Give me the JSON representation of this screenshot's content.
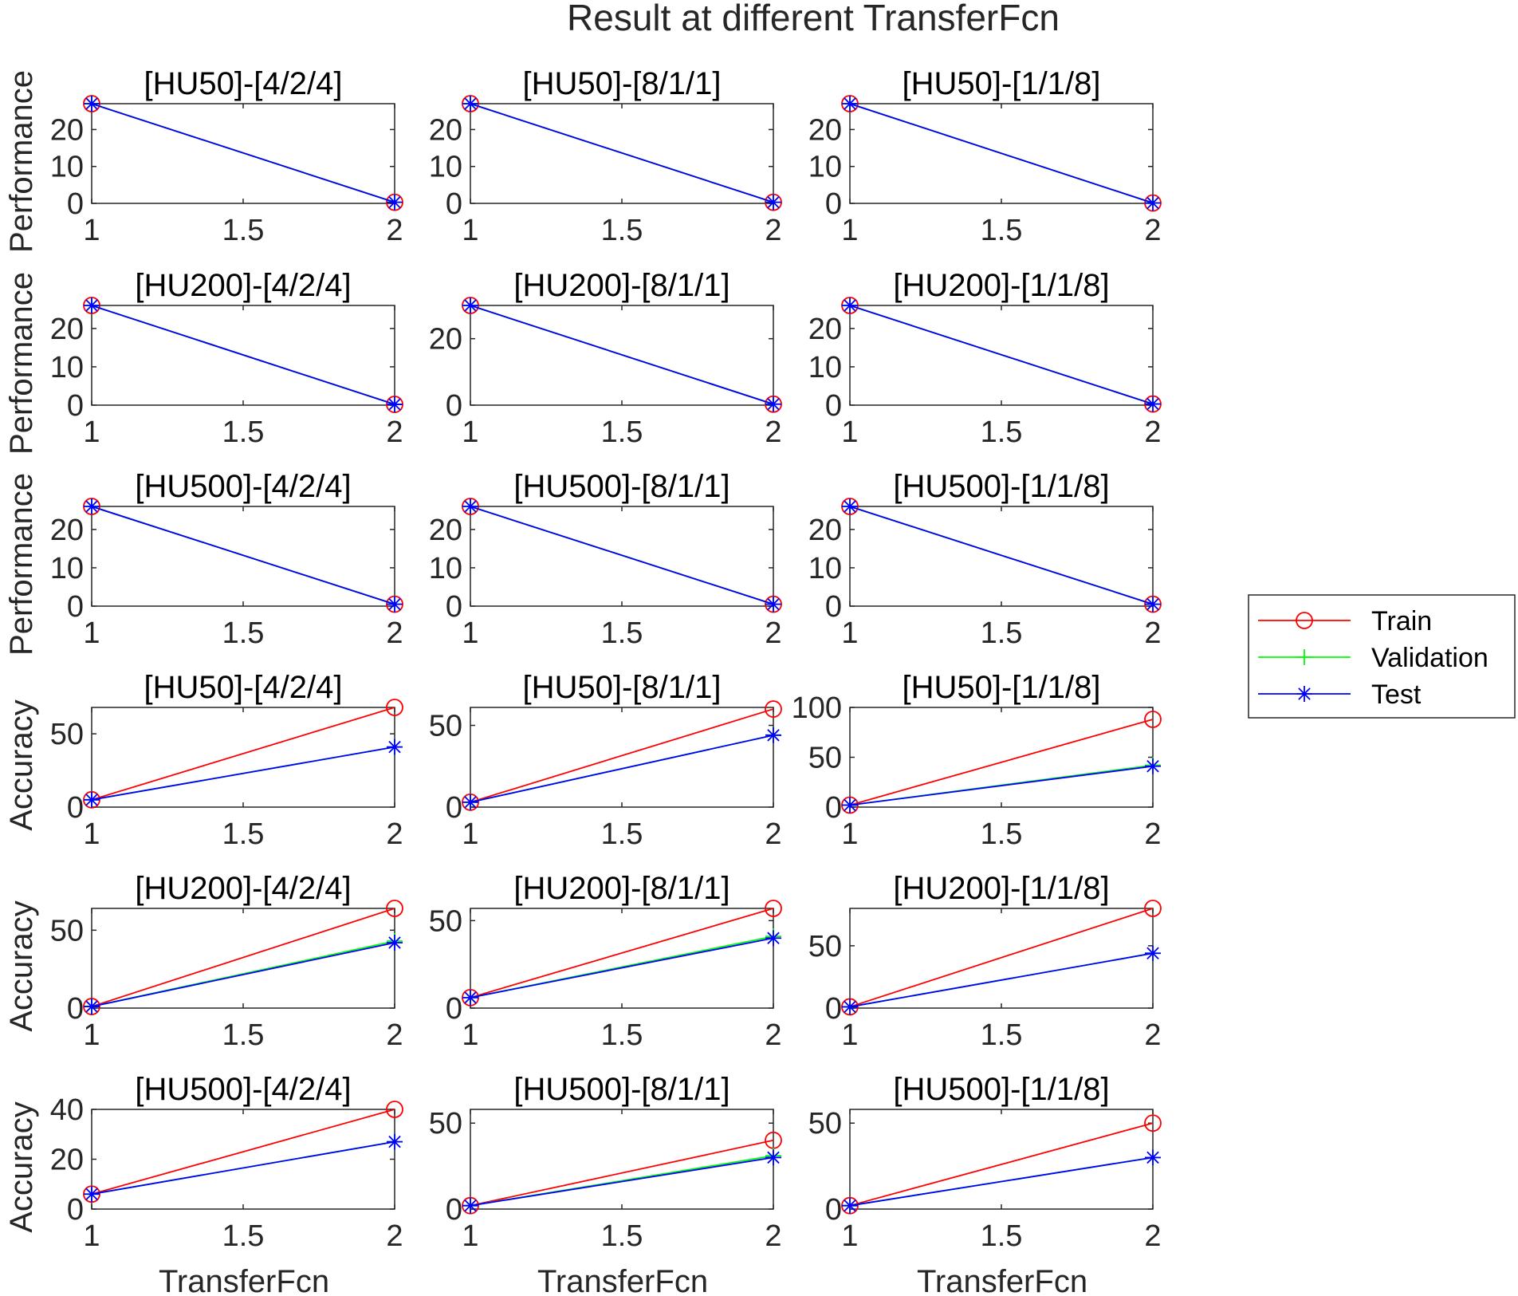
{
  "figure": {
    "title": "Result at different TransferFcn",
    "xlabel": "TransferFcn",
    "ylabel_performance": "Performance",
    "ylabel_accuracy": "Accuracy"
  },
  "legend": {
    "placement": "right-middle",
    "entries": [
      {
        "name": "Train",
        "color": "#ff0000",
        "marker": "circle"
      },
      {
        "name": "Validation",
        "color": "#00ff00",
        "marker": "plus"
      },
      {
        "name": "Test",
        "color": "#0000ff",
        "marker": "asterisk"
      }
    ]
  },
  "chart_data": [
    {
      "type": "line",
      "title": "[HU50]-[4/2/4]",
      "ylabel": "Performance",
      "x": [
        1,
        2
      ],
      "xlim": [
        1,
        2
      ],
      "xticks": [
        1,
        1.5,
        2
      ],
      "ylim": [
        0,
        27
      ],
      "yticks": [
        0,
        10,
        20
      ],
      "series": [
        {
          "name": "Train",
          "values": [
            27,
            0.3
          ]
        },
        {
          "name": "Validation",
          "values": [
            27,
            0.3
          ]
        },
        {
          "name": "Test",
          "values": [
            27,
            0.3
          ]
        }
      ]
    },
    {
      "type": "line",
      "title": "[HU50]-[8/1/1]",
      "ylabel": "",
      "x": [
        1,
        2
      ],
      "xlim": [
        1,
        2
      ],
      "xticks": [
        1,
        1.5,
        2
      ],
      "ylim": [
        0,
        27
      ],
      "yticks": [
        0,
        10,
        20
      ],
      "series": [
        {
          "name": "Train",
          "values": [
            27,
            0.3
          ]
        },
        {
          "name": "Validation",
          "values": [
            27,
            0.3
          ]
        },
        {
          "name": "Test",
          "values": [
            27,
            0.3
          ]
        }
      ]
    },
    {
      "type": "line",
      "title": "[HU50]-[1/1/8]",
      "ylabel": "",
      "x": [
        1,
        2
      ],
      "xlim": [
        1,
        2
      ],
      "xticks": [
        1,
        1.5,
        2
      ],
      "ylim": [
        0,
        27
      ],
      "yticks": [
        0,
        10,
        20
      ],
      "series": [
        {
          "name": "Train",
          "values": [
            27,
            0.1
          ]
        },
        {
          "name": "Validation",
          "values": [
            27,
            0.1
          ]
        },
        {
          "name": "Test",
          "values": [
            27,
            0.1
          ]
        }
      ]
    },
    {
      "type": "line",
      "title": "[HU200]-[4/2/4]",
      "ylabel": "Performance",
      "x": [
        1,
        2
      ],
      "xlim": [
        1,
        2
      ],
      "xticks": [
        1,
        1.5,
        2
      ],
      "ylim": [
        0,
        26
      ],
      "yticks": [
        0,
        10,
        20
      ],
      "series": [
        {
          "name": "Train",
          "values": [
            26,
            0.2
          ]
        },
        {
          "name": "Validation",
          "values": [
            26,
            0.2
          ]
        },
        {
          "name": "Test",
          "values": [
            26,
            0.2
          ]
        }
      ]
    },
    {
      "type": "line",
      "title": "[HU200]-[8/1/1]",
      "ylabel": "",
      "x": [
        1,
        2
      ],
      "xlim": [
        1,
        2
      ],
      "xticks": [
        1,
        1.5,
        2
      ],
      "ylim": [
        0,
        30
      ],
      "yticks": [
        0,
        20
      ],
      "series": [
        {
          "name": "Train",
          "values": [
            30,
            0.3
          ]
        },
        {
          "name": "Validation",
          "values": [
            30,
            0.3
          ]
        },
        {
          "name": "Test",
          "values": [
            30,
            0.3
          ]
        }
      ]
    },
    {
      "type": "line",
      "title": "[HU200]-[1/1/8]",
      "ylabel": "",
      "x": [
        1,
        2
      ],
      "xlim": [
        1,
        2
      ],
      "xticks": [
        1,
        1.5,
        2
      ],
      "ylim": [
        0,
        26
      ],
      "yticks": [
        0,
        10,
        20
      ],
      "series": [
        {
          "name": "Train",
          "values": [
            26,
            0.3
          ]
        },
        {
          "name": "Validation",
          "values": [
            26,
            0.3
          ]
        },
        {
          "name": "Test",
          "values": [
            26,
            0.3
          ]
        }
      ]
    },
    {
      "type": "line",
      "title": "[HU500]-[4/2/4]",
      "ylabel": "Performance",
      "x": [
        1,
        2
      ],
      "xlim": [
        1,
        2
      ],
      "xticks": [
        1,
        1.5,
        2
      ],
      "ylim": [
        0,
        26
      ],
      "yticks": [
        0,
        10,
        20
      ],
      "series": [
        {
          "name": "Train",
          "values": [
            26,
            0.5
          ]
        },
        {
          "name": "Validation",
          "values": [
            26,
            0.5
          ]
        },
        {
          "name": "Test",
          "values": [
            26,
            0.5
          ]
        }
      ]
    },
    {
      "type": "line",
      "title": "[HU500]-[8/1/1]",
      "ylabel": "",
      "x": [
        1,
        2
      ],
      "xlim": [
        1,
        2
      ],
      "xticks": [
        1,
        1.5,
        2
      ],
      "ylim": [
        0,
        26
      ],
      "yticks": [
        0,
        10,
        20
      ],
      "series": [
        {
          "name": "Train",
          "values": [
            26,
            0.5
          ]
        },
        {
          "name": "Validation",
          "values": [
            26,
            0.5
          ]
        },
        {
          "name": "Test",
          "values": [
            26,
            0.5
          ]
        }
      ]
    },
    {
      "type": "line",
      "title": "[HU500]-[1/1/8]",
      "ylabel": "",
      "x": [
        1,
        2
      ],
      "xlim": [
        1,
        2
      ],
      "xticks": [
        1,
        1.5,
        2
      ],
      "ylim": [
        0,
        26
      ],
      "yticks": [
        0,
        10,
        20
      ],
      "series": [
        {
          "name": "Train",
          "values": [
            26,
            0.5
          ]
        },
        {
          "name": "Validation",
          "values": [
            26,
            0.5
          ]
        },
        {
          "name": "Test",
          "values": [
            26,
            0.5
          ]
        }
      ]
    },
    {
      "type": "line",
      "title": "[HU50]-[4/2/4]",
      "ylabel": "Accuracy",
      "x": [
        1,
        2
      ],
      "xlim": [
        1,
        2
      ],
      "xticks": [
        1,
        1.5,
        2
      ],
      "ylim": [
        0,
        68
      ],
      "yticks": [
        0,
        50
      ],
      "series": [
        {
          "name": "Train",
          "values": [
            5,
            68
          ]
        },
        {
          "name": "Validation",
          "values": [
            5,
            41
          ]
        },
        {
          "name": "Test",
          "values": [
            5,
            41
          ]
        }
      ]
    },
    {
      "type": "line",
      "title": "[HU50]-[8/1/1]",
      "ylabel": "",
      "x": [
        1,
        2
      ],
      "xlim": [
        1,
        2
      ],
      "xticks": [
        1,
        1.5,
        2
      ],
      "ylim": [
        0,
        61
      ],
      "yticks": [
        0,
        50
      ],
      "series": [
        {
          "name": "Train",
          "values": [
            3,
            60
          ]
        },
        {
          "name": "Validation",
          "values": [
            3,
            44
          ]
        },
        {
          "name": "Test",
          "values": [
            3,
            44
          ]
        }
      ]
    },
    {
      "type": "line",
      "title": "[HU50]-[1/1/8]",
      "ylabel": "",
      "x": [
        1,
        2
      ],
      "xlim": [
        1,
        2
      ],
      "xticks": [
        1,
        1.5,
        2
      ],
      "ylim": [
        0,
        100
      ],
      "yticks": [
        0,
        50,
        100
      ],
      "series": [
        {
          "name": "Train",
          "values": [
            2,
            88
          ]
        },
        {
          "name": "Validation",
          "values": [
            2,
            42
          ]
        },
        {
          "name": "Test",
          "values": [
            2,
            41
          ]
        }
      ]
    },
    {
      "type": "line",
      "title": "[HU200]-[4/2/4]",
      "ylabel": "Accuracy",
      "x": [
        1,
        2
      ],
      "xlim": [
        1,
        2
      ],
      "xticks": [
        1,
        1.5,
        2
      ],
      "ylim": [
        0,
        64
      ],
      "yticks": [
        0,
        50
      ],
      "series": [
        {
          "name": "Train",
          "values": [
            1,
            64
          ]
        },
        {
          "name": "Validation",
          "values": [
            1,
            43
          ]
        },
        {
          "name": "Test",
          "values": [
            1,
            42
          ]
        }
      ]
    },
    {
      "type": "line",
      "title": "[HU200]-[8/1/1]",
      "ylabel": "",
      "x": [
        1,
        2
      ],
      "xlim": [
        1,
        2
      ],
      "xticks": [
        1,
        1.5,
        2
      ],
      "ylim": [
        0,
        57
      ],
      "yticks": [
        0,
        50
      ],
      "series": [
        {
          "name": "Train",
          "values": [
            6,
            57
          ]
        },
        {
          "name": "Validation",
          "values": [
            6,
            41
          ]
        },
        {
          "name": "Test",
          "values": [
            6,
            40
          ]
        }
      ]
    },
    {
      "type": "line",
      "title": "[HU200]-[1/1/8]",
      "ylabel": "",
      "x": [
        1,
        2
      ],
      "xlim": [
        1,
        2
      ],
      "xticks": [
        1,
        1.5,
        2
      ],
      "ylim": [
        0,
        80
      ],
      "yticks": [
        0,
        50
      ],
      "series": [
        {
          "name": "Train",
          "values": [
            1,
            80
          ]
        },
        {
          "name": "Validation",
          "values": [
            1,
            44
          ]
        },
        {
          "name": "Test",
          "values": [
            1,
            44
          ]
        }
      ]
    },
    {
      "type": "line",
      "title": "[HU500]-[4/2/4]",
      "ylabel": "Accuracy",
      "x": [
        1,
        2
      ],
      "xlim": [
        1,
        2
      ],
      "xticks": [
        1,
        1.5,
        2
      ],
      "ylim": [
        0,
        40
      ],
      "yticks": [
        0,
        20,
        40
      ],
      "series": [
        {
          "name": "Train",
          "values": [
            6,
            40
          ]
        },
        {
          "name": "Validation",
          "values": [
            6,
            27
          ]
        },
        {
          "name": "Test",
          "values": [
            6,
            27
          ]
        }
      ]
    },
    {
      "type": "line",
      "title": "[HU500]-[8/1/1]",
      "ylabel": "",
      "x": [
        1,
        2
      ],
      "xlim": [
        1,
        2
      ],
      "xticks": [
        1,
        1.5,
        2
      ],
      "ylim": [
        0,
        58
      ],
      "yticks": [
        0,
        50
      ],
      "series": [
        {
          "name": "Train",
          "values": [
            2,
            40
          ]
        },
        {
          "name": "Validation",
          "values": [
            2,
            31
          ]
        },
        {
          "name": "Test",
          "values": [
            2,
            30
          ]
        }
      ]
    },
    {
      "type": "line",
      "title": "[HU500]-[1/1/8]",
      "ylabel": "",
      "x": [
        1,
        2
      ],
      "xlim": [
        1,
        2
      ],
      "xticks": [
        1,
        1.5,
        2
      ],
      "ylim": [
        0,
        58
      ],
      "yticks": [
        0,
        50
      ],
      "series": [
        {
          "name": "Train",
          "values": [
            2,
            50
          ]
        },
        {
          "name": "Validation",
          "values": [
            2,
            30
          ]
        },
        {
          "name": "Test",
          "values": [
            2,
            30
          ]
        }
      ]
    }
  ]
}
